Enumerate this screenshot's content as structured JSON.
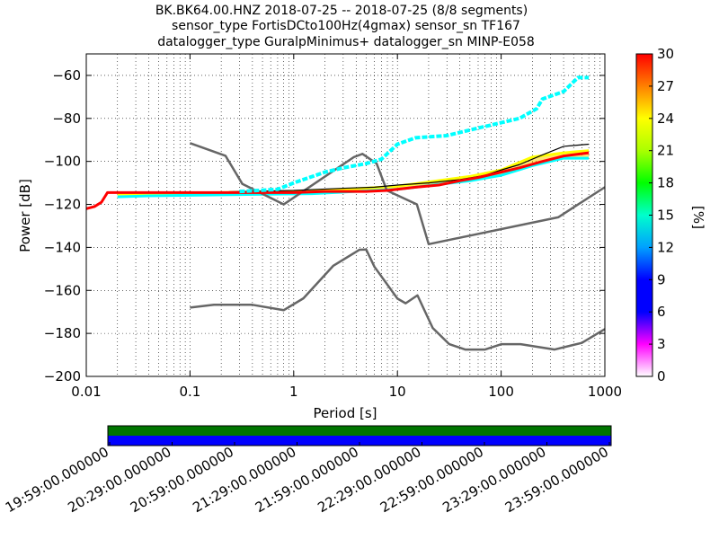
{
  "title_lines": [
    "BK.BK64.00.HNZ   2018-07-25 -- 2018-07-25  (8/8 segments)",
    "sensor_type FortisDCto100Hz(4gmax) sensor_sn TF167",
    "datalogger_type GuralpMinimus+ datalogger_sn MINP-E058"
  ],
  "chart_data": {
    "type": "heatmap",
    "title": "BK.BK64.00.HNZ   2018-07-25 -- 2018-07-25  (8/8 segments)",
    "xlabel": "Period [s]",
    "ylabel": "Power [dB]",
    "x_scale": "log",
    "xlim": [
      0.01,
      1000
    ],
    "ylim": [
      -200,
      -50
    ],
    "grid": true,
    "x_ticks": [
      0.01,
      0.1,
      1,
      10,
      100,
      1000
    ],
    "x_tick_labels": [
      "0.01",
      "0.1",
      "1",
      "10",
      "100",
      "1000"
    ],
    "y_ticks": [
      -200,
      -180,
      -160,
      -140,
      -120,
      -100,
      -80,
      -60
    ],
    "y_tick_labels": [
      "−200",
      "−180",
      "−160",
      "−140",
      "−120",
      "−100",
      "−80",
      "−60"
    ],
    "colorbar": {
      "label": "[%]",
      "range": [
        0,
        30
      ],
      "ticks": [
        0,
        3,
        6,
        9,
        12,
        15,
        18,
        21,
        24,
        27,
        30
      ],
      "tick_labels": [
        "0",
        "3",
        "6",
        "9",
        "12",
        "15",
        "18",
        "21",
        "24",
        "27",
        "30"
      ]
    },
    "series": [
      {
        "role": "NHNM",
        "color": "#666666",
        "points": [
          [
            0.1,
            -91.5
          ],
          [
            0.22,
            -97.4
          ],
          [
            0.32,
            -110.5
          ],
          [
            0.8,
            -120
          ],
          [
            3.8,
            -98
          ],
          [
            4.6,
            -96.5
          ],
          [
            6.3,
            -101
          ],
          [
            7.9,
            -113.5
          ],
          [
            15.4,
            -120
          ],
          [
            20,
            -138.5
          ],
          [
            354.8,
            -126
          ],
          [
            1000,
            -112
          ]
        ]
      },
      {
        "role": "NLNM",
        "color": "#666666",
        "points": [
          [
            0.1,
            -168
          ],
          [
            0.17,
            -166.7
          ],
          [
            0.4,
            -166.7
          ],
          [
            0.8,
            -169.2
          ],
          [
            1.24,
            -163.7
          ],
          [
            2.4,
            -148.6
          ],
          [
            4.3,
            -141.1
          ],
          [
            5,
            -141
          ],
          [
            6,
            -149
          ],
          [
            10,
            -163.8
          ],
          [
            12,
            -166
          ],
          [
            15.6,
            -162.3
          ],
          [
            21.9,
            -177.5
          ],
          [
            31.6,
            -185
          ],
          [
            45,
            -187.5
          ],
          [
            70,
            -187.5
          ],
          [
            101,
            -185
          ],
          [
            154,
            -185
          ],
          [
            328,
            -187.5
          ],
          [
            600,
            -184.4
          ],
          [
            1000,
            -178
          ]
        ]
      },
      {
        "role": "percentile",
        "color": "#000000",
        "points": [
          [
            0.01,
            -122
          ],
          [
            0.012,
            -121
          ],
          [
            0.014,
            -119
          ],
          [
            0.016,
            -114.5
          ],
          [
            0.03,
            -114.5
          ],
          [
            0.1,
            -114.5
          ],
          [
            1,
            -113.5
          ],
          [
            3,
            -112.5
          ],
          [
            6,
            -112
          ],
          [
            10,
            -111
          ],
          [
            20,
            -110
          ],
          [
            40,
            -108.5
          ],
          [
            70,
            -106.5
          ],
          [
            100,
            -104
          ],
          [
            150,
            -101.5
          ],
          [
            250,
            -97
          ],
          [
            400,
            -93
          ],
          [
            700,
            -92
          ]
        ]
      },
      {
        "role": "mode",
        "color": "#ff0000",
        "points": [
          [
            0.01,
            -122
          ],
          [
            0.012,
            -121
          ],
          [
            0.014,
            -119
          ],
          [
            0.016,
            -114.5
          ],
          [
            0.1,
            -114.5
          ],
          [
            1,
            -114.5
          ],
          [
            2,
            -114
          ],
          [
            5,
            -114
          ],
          [
            8,
            -113.5
          ],
          [
            15,
            -112
          ],
          [
            25,
            -111
          ],
          [
            40,
            -109
          ],
          [
            60,
            -107.5
          ],
          [
            100,
            -105
          ],
          [
            150,
            -103
          ],
          [
            250,
            -100
          ],
          [
            400,
            -97.5
          ],
          [
            700,
            -96
          ]
        ]
      },
      {
        "role": "cyan-trace",
        "color": "#00ffff",
        "points": [
          [
            0.3,
            -114
          ],
          [
            0.7,
            -113
          ],
          [
            1,
            -110
          ],
          [
            2,
            -105
          ],
          [
            3,
            -103
          ],
          [
            5,
            -101
          ],
          [
            7,
            -99
          ],
          [
            10,
            -92
          ],
          [
            15,
            -89
          ],
          [
            30,
            -88
          ],
          [
            60,
            -84.5
          ],
          [
            100,
            -82
          ],
          [
            150,
            -80
          ],
          [
            220,
            -75.5
          ],
          [
            250,
            -71
          ],
          [
            400,
            -67.5
          ],
          [
            550,
            -61
          ],
          [
            700,
            -61
          ]
        ]
      },
      {
        "role": "band-upper",
        "color": "#ffff00",
        "points": [
          [
            0.02,
            -115
          ],
          [
            0.03,
            -115
          ],
          [
            1.5,
            -114
          ],
          [
            10,
            -111.5
          ],
          [
            50,
            -107
          ],
          [
            100,
            -104
          ],
          [
            200,
            -98
          ],
          [
            400,
            -96
          ],
          [
            700,
            -95
          ]
        ]
      },
      {
        "role": "band-lower",
        "color": "#00ffff",
        "points": [
          [
            0.02,
            -116.5
          ],
          [
            0.04,
            -116
          ],
          [
            1.5,
            -115
          ],
          [
            10,
            -113
          ],
          [
            50,
            -109
          ],
          [
            100,
            -106.5
          ],
          [
            200,
            -102
          ],
          [
            400,
            -98.5
          ],
          [
            700,
            -98.5
          ]
        ]
      }
    ]
  },
  "data_availability": {
    "bands": [
      {
        "color": "#007500",
        "coverage": 1.0
      },
      {
        "color": "#0000ff",
        "coverage": 1.0
      }
    ],
    "time_ticks": [
      "19:59:00.000000",
      "20:29:00.000000",
      "20:59:00.000000",
      "21:29:00.000000",
      "21:59:00.000000",
      "22:29:00.000000",
      "22:59:00.000000",
      "23:29:00.000000",
      "23:59:00.000000"
    ]
  }
}
